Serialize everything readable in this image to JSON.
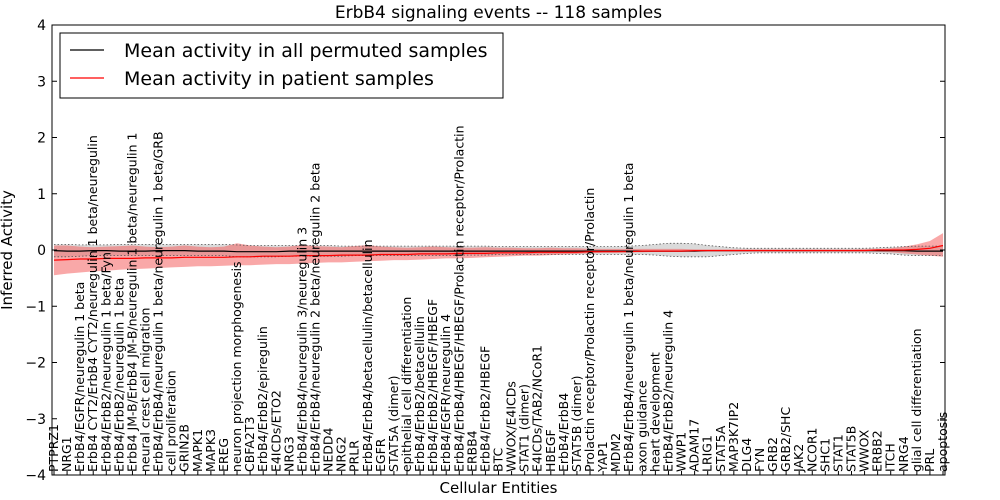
{
  "chart_data": {
    "type": "line",
    "title": "ErbB4 signaling events -- 118 samples",
    "xlabel": "Cellular Entities",
    "ylabel": "Inferred Activity",
    "ylim": [
      -4,
      4
    ],
    "yticks": [
      -4,
      -3,
      -2,
      -1,
      0,
      1,
      2,
      3,
      4
    ],
    "legend_position": "top-left",
    "colors": {
      "permuted": "#000000",
      "patient": "#ff0000",
      "patient_band": "#f46060",
      "permuted_band": "#bbbbbb"
    },
    "categories": [
      "PTPRZ1",
      "NRG1",
      "ErbB4/EGFR/neuregulin 1 beta",
      "ErbB4 CYT2/ErbB4 CYT2/neuregulin 1 beta/neuregulin",
      "ErbB4/ErbB2/neuregulin 1 beta/Fyn",
      "ErbB4/ErbB2/neuregulin 1 beta",
      "ErbB4 JM-B/ErbB4 JM-B/neuregulin 1 beta/neuregulin 1",
      "neural crest cell migration",
      "ErbB4/ErbB4/neuregulin 1 beta/neuregulin 1 beta/GRB",
      "cell proliferation",
      "GRIN2B",
      "MAPK1",
      "MAPK3",
      "EREG",
      "neuron projection morphogenesis",
      "CBFA2T3",
      "ErbB4/ErbB2/epiregulin",
      "E4ICDs/ETO2",
      "NRG3",
      "ErbB4/ErbB4/neuregulin 3/neuregulin 3",
      "ErbB4/ErbB4/neuregulin 2 beta/neuregulin 2 beta",
      "NEDD4",
      "NRG2",
      "PRLR",
      "ErbB4/ErbB4/betacellulin/betacellulin",
      "EGFR",
      "STAT5A (dimer)",
      "epithelial cell differentiation",
      "ErbB4/ErbB2/betacellulin",
      "ErbB4/ErbB2/HBEGF/HBEGF",
      "ErbB4/EGFR/neuregulin 4",
      "ErbB4/ErbB4/HBEGF/HBEGF/Prolactin receptor/Prolactin",
      "ERBB4",
      "ErbB4/ErbB2/HBEGF",
      "BTC",
      "WWOX/E4ICDs",
      "STAT1 (dimer)",
      "E4ICDs/TAB2/NCoR1",
      "HBEGF",
      "ErbB4/ErbB4",
      "STAT5B (dimer)",
      "Prolactin receptor/Prolactin receptor/Prolactin",
      "YAP1",
      "MDM2",
      "ErbB4/ErbB4/neuregulin 1 beta/neuregulin 1 beta",
      "axon guidance",
      "heart development",
      "ErbB4/ErbB2/neuregulin 4",
      "WWP1",
      "ADAM17",
      "LRIG1",
      "STAT5A",
      "MAP3K7IP2",
      "DLG4",
      "FYN",
      "GRB2",
      "GRB2/SHC",
      "JAK2",
      "NCOR1",
      "SHC1",
      "STAT1",
      "STAT5B",
      "WWOX",
      "ERBB2",
      "ITCH",
      "NRG4",
      "glial cell differentiation",
      "PRL",
      "apoptosis"
    ],
    "series": [
      {
        "name": "Mean activity in all permuted samples",
        "values": [
          -0.01,
          -0.02,
          -0.02,
          -0.01,
          -0.01,
          -0.02,
          -0.02,
          -0.02,
          -0.01,
          -0.01,
          -0.01,
          -0.02,
          -0.02,
          -0.02,
          -0.03,
          -0.03,
          -0.03,
          -0.03,
          -0.02,
          -0.02,
          -0.02,
          -0.02,
          -0.02,
          -0.02,
          -0.02,
          -0.02,
          -0.02,
          -0.02,
          -0.02,
          -0.02,
          -0.02,
          -0.02,
          -0.02,
          -0.02,
          -0.02,
          -0.02,
          -0.02,
          -0.02,
          -0.02,
          -0.02,
          -0.02,
          -0.02,
          -0.02,
          -0.02,
          -0.02,
          -0.02,
          -0.02,
          -0.02,
          -0.02,
          -0.02,
          -0.01,
          -0.01,
          -0.01,
          -0.01,
          -0.01,
          -0.01,
          -0.01,
          -0.01,
          -0.01,
          -0.01,
          -0.01,
          -0.01,
          -0.01,
          -0.01,
          -0.01,
          -0.01,
          -0.02,
          -0.02,
          -0.02
        ],
        "lower": [
          -0.12,
          -0.12,
          -0.11,
          -0.1,
          -0.1,
          -0.1,
          -0.1,
          -0.1,
          -0.1,
          -0.1,
          -0.1,
          -0.1,
          -0.1,
          -0.1,
          -0.12,
          -0.12,
          -0.12,
          -0.12,
          -0.11,
          -0.11,
          -0.11,
          -0.11,
          -0.11,
          -0.1,
          -0.1,
          -0.1,
          -0.1,
          -0.1,
          -0.1,
          -0.1,
          -0.1,
          -0.09,
          -0.09,
          -0.09,
          -0.08,
          -0.08,
          -0.08,
          -0.08,
          -0.08,
          -0.08,
          -0.08,
          -0.08,
          -0.08,
          -0.08,
          -0.08,
          -0.08,
          -0.09,
          -0.11,
          -0.12,
          -0.12,
          -0.12,
          -0.1,
          -0.08,
          -0.06,
          -0.05,
          -0.05,
          -0.05,
          -0.05,
          -0.05,
          -0.05,
          -0.05,
          -0.05,
          -0.05,
          -0.06,
          -0.07,
          -0.09,
          -0.1,
          -0.1,
          -0.1
        ],
        "upper": [
          0.1,
          0.1,
          0.09,
          0.09,
          0.09,
          0.1,
          0.1,
          0.1,
          0.1,
          0.1,
          0.1,
          0.1,
          0.1,
          0.1,
          0.09,
          0.08,
          0.08,
          0.08,
          0.08,
          0.08,
          0.08,
          0.08,
          0.07,
          0.07,
          0.07,
          0.07,
          0.07,
          0.07,
          0.07,
          0.07,
          0.07,
          0.07,
          0.07,
          0.07,
          0.06,
          0.06,
          0.06,
          0.06,
          0.06,
          0.06,
          0.06,
          0.06,
          0.06,
          0.06,
          0.07,
          0.08,
          0.1,
          0.12,
          0.12,
          0.11,
          0.08,
          0.06,
          0.04,
          0.03,
          0.03,
          0.03,
          0.03,
          0.03,
          0.03,
          0.03,
          0.03,
          0.03,
          0.03,
          0.04,
          0.05,
          0.06,
          0.07,
          0.07,
          0.07
        ]
      },
      {
        "name": "Mean activity in patient samples",
        "values": [
          -0.18,
          -0.17,
          -0.16,
          -0.16,
          -0.15,
          -0.15,
          -0.15,
          -0.14,
          -0.14,
          -0.14,
          -0.13,
          -0.13,
          -0.13,
          -0.13,
          -0.12,
          -0.12,
          -0.11,
          -0.11,
          -0.11,
          -0.1,
          -0.1,
          -0.1,
          -0.09,
          -0.09,
          -0.09,
          -0.08,
          -0.08,
          -0.08,
          -0.07,
          -0.07,
          -0.07,
          -0.06,
          -0.06,
          -0.06,
          -0.05,
          -0.05,
          -0.05,
          -0.04,
          -0.04,
          -0.04,
          -0.04,
          -0.03,
          -0.03,
          -0.03,
          -0.03,
          -0.02,
          -0.02,
          -0.02,
          -0.02,
          -0.01,
          -0.01,
          -0.01,
          -0.01,
          -0.01,
          -0.01,
          -0.01,
          -0.01,
          -0.01,
          -0.01,
          -0.01,
          -0.01,
          -0.01,
          -0.01,
          0.0,
          0.0,
          0.0,
          0.01,
          0.03,
          0.08
        ],
        "lower": [
          -0.45,
          -0.42,
          -0.4,
          -0.38,
          -0.37,
          -0.35,
          -0.34,
          -0.33,
          -0.32,
          -0.31,
          -0.3,
          -0.29,
          -0.29,
          -0.28,
          -0.27,
          -0.27,
          -0.26,
          -0.25,
          -0.25,
          -0.24,
          -0.23,
          -0.22,
          -0.22,
          -0.21,
          -0.2,
          -0.19,
          -0.18,
          -0.18,
          -0.17,
          -0.16,
          -0.15,
          -0.15,
          -0.14,
          -0.13,
          -0.12,
          -0.11,
          -0.1,
          -0.1,
          -0.09,
          -0.08,
          -0.07,
          -0.06,
          -0.05,
          -0.05,
          -0.04,
          -0.04,
          -0.03,
          -0.03,
          -0.03,
          -0.02,
          -0.02,
          -0.02,
          -0.02,
          -0.02,
          -0.02,
          -0.02,
          -0.02,
          -0.02,
          -0.02,
          -0.02,
          -0.02,
          -0.02,
          -0.02,
          -0.03,
          -0.04,
          -0.06,
          -0.08,
          -0.1,
          -0.12
        ],
        "upper": [
          0.08,
          0.08,
          0.06,
          0.05,
          0.06,
          0.07,
          0.08,
          0.06,
          0.05,
          0.06,
          0.08,
          0.06,
          0.05,
          0.06,
          0.12,
          0.08,
          0.06,
          0.05,
          0.06,
          0.09,
          0.07,
          0.06,
          0.05,
          0.07,
          0.09,
          0.06,
          0.05,
          0.04,
          0.05,
          0.06,
          0.05,
          0.04,
          0.04,
          0.05,
          0.04,
          0.04,
          0.03,
          0.03,
          0.04,
          0.03,
          0.03,
          0.02,
          0.02,
          0.02,
          0.02,
          0.02,
          0.02,
          0.02,
          0.02,
          0.01,
          0.01,
          0.01,
          0.01,
          0.01,
          0.01,
          0.01,
          0.01,
          0.01,
          0.01,
          0.01,
          0.01,
          0.01,
          0.02,
          0.02,
          0.03,
          0.06,
          0.1,
          0.16,
          0.3
        ]
      }
    ]
  }
}
